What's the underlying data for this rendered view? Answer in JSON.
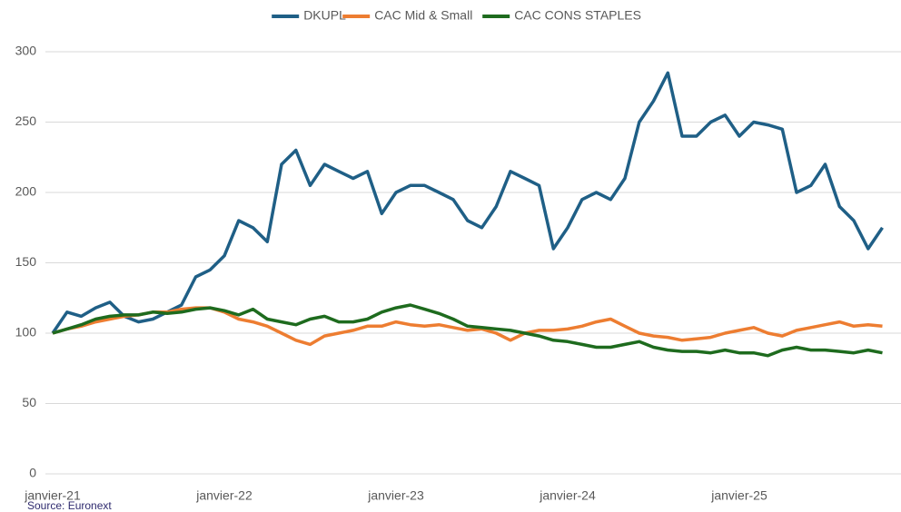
{
  "chart_data": {
    "type": "line",
    "source": "Source: Euronext",
    "categories": [
      "janvier-21",
      null,
      null,
      null,
      null,
      null,
      null,
      null,
      null,
      null,
      null,
      null,
      "janvier-22",
      null,
      null,
      null,
      null,
      null,
      null,
      null,
      null,
      null,
      null,
      null,
      "janvier-23",
      null,
      null,
      null,
      null,
      null,
      null,
      null,
      null,
      null,
      null,
      null,
      "janvier-24",
      null,
      null,
      null,
      null,
      null,
      null,
      null,
      null,
      null,
      null,
      null,
      "janvier-25",
      null,
      null,
      null,
      null,
      null,
      null,
      null,
      null,
      null,
      null
    ],
    "series": [
      {
        "name": "DKUPL",
        "color": "#1f5f86",
        "values": [
          100,
          115,
          112,
          118,
          122,
          112,
          108,
          110,
          115,
          120,
          140,
          145,
          155,
          180,
          175,
          165,
          220,
          230,
          205,
          220,
          215,
          210,
          215,
          185,
          200,
          205,
          205,
          200,
          195,
          180,
          175,
          190,
          215,
          210,
          205,
          160,
          175,
          195,
          200,
          195,
          210,
          250,
          265,
          285,
          240,
          240,
          250,
          255,
          240,
          250,
          248,
          245,
          200,
          205,
          220,
          190,
          180,
          160,
          175
        ]
      },
      {
        "name": "CAC Mid & Small",
        "color": "#ed7d31",
        "values": [
          100,
          103,
          105,
          108,
          110,
          112,
          113,
          115,
          115,
          117,
          118,
          118,
          115,
          110,
          108,
          105,
          100,
          95,
          92,
          98,
          100,
          102,
          105,
          105,
          108,
          106,
          105,
          106,
          104,
          102,
          103,
          100,
          95,
          100,
          102,
          102,
          103,
          105,
          108,
          110,
          105,
          100,
          98,
          97,
          95,
          96,
          97,
          100,
          102,
          104,
          100,
          98,
          102,
          104,
          106,
          108,
          105,
          106,
          105
        ]
      },
      {
        "name": "CAC CONS STAPLES",
        "color": "#1e6b1e",
        "values": [
          100,
          103,
          106,
          110,
          112,
          113,
          113,
          115,
          114,
          115,
          117,
          118,
          116,
          113,
          117,
          110,
          108,
          106,
          110,
          112,
          108,
          108,
          110,
          115,
          118,
          120,
          117,
          114,
          110,
          105,
          104,
          103,
          102,
          100,
          98,
          95,
          94,
          92,
          90,
          90,
          92,
          94,
          90,
          88,
          87,
          87,
          86,
          88,
          86,
          86,
          84,
          88,
          90,
          88,
          88,
          87,
          86,
          88,
          86
        ]
      }
    ],
    "ylim": [
      0,
      300
    ],
    "yticks": [
      0,
      50,
      100,
      150,
      200,
      250,
      300
    ],
    "grid": true,
    "legend": "top"
  }
}
